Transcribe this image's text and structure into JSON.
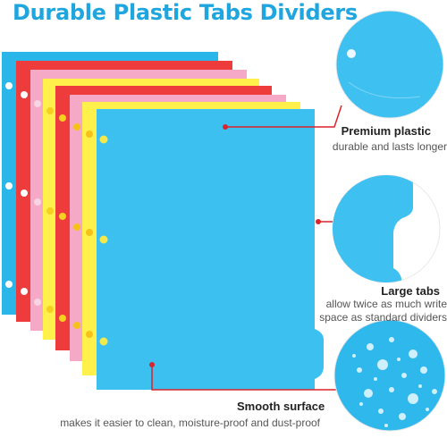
{
  "title": "Durable Plastic Tabs Dividers",
  "features": [
    {
      "title": "Premium plastic",
      "description": "durable and lasts longer"
    },
    {
      "title": "Large tabs",
      "description": "allow twice as much write space as standard dividers"
    },
    {
      "title": "Smooth surface",
      "description": "makes it easier to clean, moisture-proof and dust-proof"
    }
  ],
  "divider_colors": [
    "#2bb6ea",
    "#ee3b3b",
    "#f6a9c6",
    "#fff04c",
    "#ee3b3b",
    "#f6a9c6",
    "#fff04c",
    "#3cc0f0"
  ],
  "accent_color": "#1fa6df",
  "callout_color": "#d9242b"
}
